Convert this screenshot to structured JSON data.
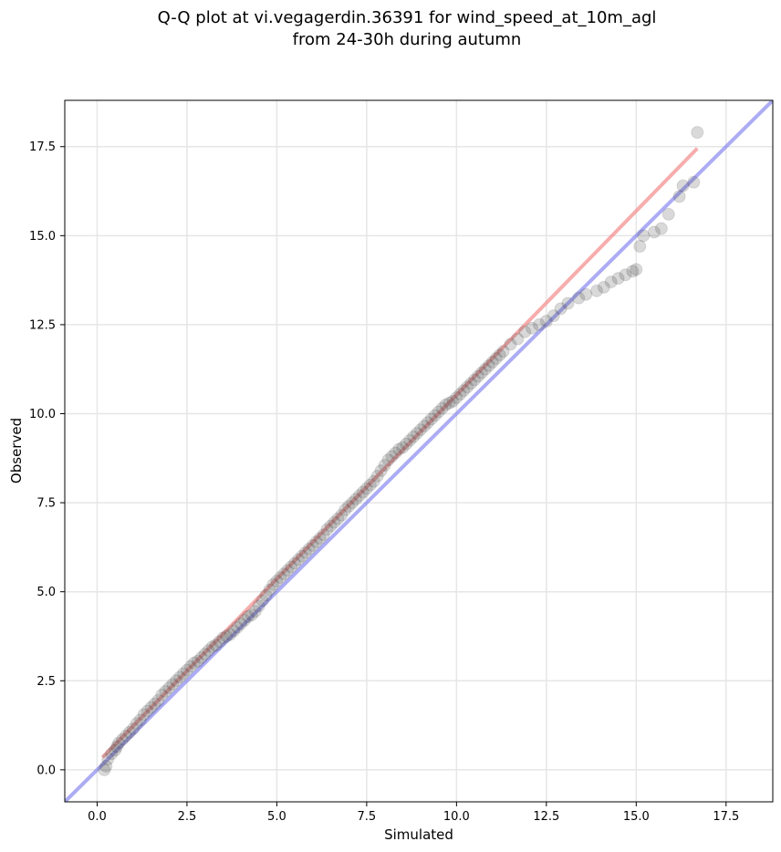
{
  "chart_data": {
    "type": "scatter",
    "title_line1": "Q-Q plot at vi.vegagerdin.36391 for wind_speed_at_10m_agl",
    "title_line2": "from 24-30h during autumn",
    "xlabel": "Simulated",
    "ylabel": "Observed",
    "xlim": [
      -0.9,
      18.8
    ],
    "ylim": [
      -0.9,
      18.8
    ],
    "x_ticks": [
      0.0,
      2.5,
      5.0,
      7.5,
      10.0,
      12.5,
      15.0,
      17.5
    ],
    "y_ticks": [
      0.0,
      2.5,
      5.0,
      7.5,
      10.0,
      12.5,
      15.0,
      17.5
    ],
    "x_tick_labels": [
      "0.0",
      "2.5",
      "5.0",
      "7.5",
      "10.0",
      "12.5",
      "15.0",
      "17.5"
    ],
    "y_tick_labels": [
      "0.0",
      "2.5",
      "5.0",
      "7.5",
      "10.0",
      "12.5",
      "15.0",
      "17.5"
    ],
    "grid": true,
    "reference_line": {
      "color": "#7f7ff0",
      "slope": 1,
      "intercept": 0
    },
    "fit_line": {
      "color": "#f48a8a",
      "x": [
        0.15,
        16.7
      ],
      "y": [
        0.35,
        17.45
      ]
    },
    "points": {
      "color": "#404040",
      "x": [
        0.2,
        0.25,
        0.3,
        0.4,
        0.5,
        0.55,
        0.6,
        0.7,
        0.8,
        0.9,
        1.0,
        1.1,
        1.2,
        1.3,
        1.4,
        1.5,
        1.6,
        1.7,
        1.8,
        1.9,
        2.0,
        2.1,
        2.2,
        2.3,
        2.4,
        2.5,
        2.6,
        2.7,
        2.8,
        2.9,
        3.0,
        3.1,
        3.2,
        3.3,
        3.4,
        3.5,
        3.6,
        3.7,
        3.8,
        3.9,
        4.0,
        4.1,
        4.2,
        4.3,
        4.4,
        4.5,
        4.6,
        4.7,
        4.8,
        4.9,
        5.0,
        5.1,
        5.2,
        5.3,
        5.4,
        5.5,
        5.6,
        5.7,
        5.8,
        5.9,
        6.0,
        6.1,
        6.2,
        6.3,
        6.4,
        6.5,
        6.6,
        6.7,
        6.8,
        6.9,
        7.0,
        7.1,
        7.2,
        7.3,
        7.4,
        7.5,
        7.6,
        7.7,
        7.8,
        7.9,
        8.0,
        8.1,
        8.2,
        8.3,
        8.4,
        8.5,
        8.6,
        8.7,
        8.8,
        8.9,
        9.0,
        9.1,
        9.2,
        9.3,
        9.4,
        9.5,
        9.6,
        9.7,
        9.8,
        9.9,
        10.0,
        10.1,
        10.2,
        10.3,
        10.4,
        10.5,
        10.6,
        10.7,
        10.8,
        10.9,
        11.0,
        11.1,
        11.2,
        11.3,
        11.5,
        11.7,
        11.9,
        12.1,
        12.3,
        12.5,
        12.7,
        12.9,
        13.1,
        13.4,
        13.6,
        13.9,
        14.1,
        14.3,
        14.5,
        14.7,
        14.9,
        15.0,
        15.1,
        15.2,
        15.5,
        15.7,
        15.9,
        16.2,
        16.3,
        16.6,
        16.7
      ],
      "y": [
        0.0,
        0.1,
        0.3,
        0.45,
        0.55,
        0.65,
        0.75,
        0.85,
        0.95,
        1.05,
        1.15,
        1.3,
        1.4,
        1.55,
        1.65,
        1.75,
        1.85,
        1.95,
        2.1,
        2.2,
        2.3,
        2.4,
        2.5,
        2.6,
        2.7,
        2.8,
        2.9,
        3.0,
        3.05,
        3.15,
        3.25,
        3.35,
        3.45,
        3.5,
        3.6,
        3.7,
        3.75,
        3.8,
        3.9,
        4.0,
        4.1,
        4.2,
        4.3,
        4.35,
        4.45,
        4.6,
        4.75,
        4.9,
        5.05,
        5.2,
        5.3,
        5.4,
        5.5,
        5.6,
        5.7,
        5.8,
        5.9,
        6.0,
        6.1,
        6.2,
        6.3,
        6.4,
        6.5,
        6.6,
        6.75,
        6.85,
        6.95,
        7.05,
        7.15,
        7.3,
        7.4,
        7.5,
        7.6,
        7.7,
        7.8,
        7.9,
        8.0,
        8.1,
        8.25,
        8.4,
        8.55,
        8.7,
        8.8,
        8.9,
        9.0,
        9.05,
        9.15,
        9.25,
        9.35,
        9.45,
        9.55,
        9.65,
        9.75,
        9.85,
        9.95,
        10.05,
        10.15,
        10.25,
        10.3,
        10.35,
        10.45,
        10.55,
        10.65,
        10.75,
        10.85,
        10.95,
        11.05,
        11.15,
        11.25,
        11.35,
        11.45,
        11.55,
        11.65,
        11.75,
        11.95,
        12.1,
        12.3,
        12.4,
        12.5,
        12.6,
        12.75,
        12.95,
        13.1,
        13.25,
        13.35,
        13.45,
        13.55,
        13.7,
        13.8,
        13.9,
        14.0,
        14.05,
        14.7,
        15.0,
        15.1,
        15.2,
        15.6,
        16.1,
        16.4,
        16.5,
        17.9
      ]
    }
  }
}
